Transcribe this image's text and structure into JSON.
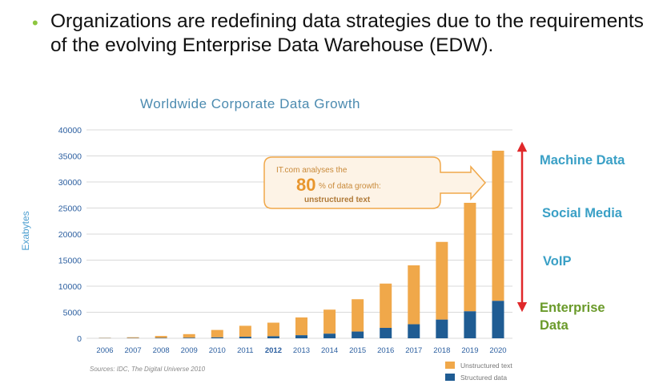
{
  "bullet": {
    "text": "Organizations are redefining data strategies due to the requirements of the evolving Enterprise Data Warehouse (EDW)."
  },
  "colors": {
    "unstructured": "#f0a84a",
    "structured": "#1f5c93",
    "arrow": "#e0282a",
    "category_blue": "#3aa0c6",
    "category_green": "#6a9a2a",
    "bullet": "#8dc63f"
  },
  "chart_data": {
    "type": "bar",
    "stacked": true,
    "title": "Worldwide Corporate Data Growth",
    "ylabel": "Exabytes",
    "xlabel": "",
    "ylim": [
      0,
      40000
    ],
    "yticks": [
      "0",
      "5000",
      "10000",
      "15000",
      "20000",
      "25000",
      "30000",
      "35000",
      "40000"
    ],
    "grid": true,
    "categories": [
      "2006",
      "2007",
      "2008",
      "2009",
      "2010",
      "2011",
      "2012",
      "2013",
      "2014",
      "2015",
      "2016",
      "2017",
      "2018",
      "2019",
      "2020"
    ],
    "highlight_category": "2012",
    "series": [
      {
        "name": "Structured data",
        "values": [
          50,
          60,
          80,
          120,
          200,
          300,
          400,
          600,
          900,
          1300,
          2000,
          2700,
          3600,
          5200,
          7200
        ]
      },
      {
        "name": "Unstructured text",
        "values": [
          50,
          140,
          370,
          680,
          1400,
          2100,
          2600,
          3400,
          4600,
          6200,
          8500,
          11300,
          14900,
          20800,
          28800
        ]
      }
    ],
    "legend_position": "bottom-right",
    "source": "Sources: IDC, The Digital Universe 2010",
    "annotation": {
      "line1": "IT.com analyses the",
      "pct": "80",
      "line2": "% of data growth:",
      "line3": "unstructured text"
    }
  },
  "data_categories": {
    "machine": "Machine Data",
    "social": "Social Media",
    "voip": "VoIP",
    "enterprise": [
      "Enterprise",
      "Data"
    ]
  }
}
